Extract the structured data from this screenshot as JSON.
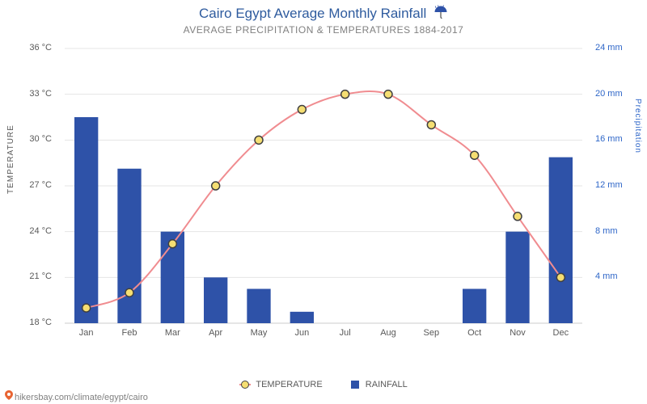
{
  "chart": {
    "title": "Cairo Egypt Average Monthly Rainfall",
    "title_color": "#2e5b9e",
    "subtitle": "AVERAGE PRECIPITATION & TEMPERATURES 1884-2017",
    "subtitle_color": "#808080",
    "months": [
      "Jan",
      "Feb",
      "Mar",
      "Apr",
      "May",
      "Jun",
      "Jul",
      "Aug",
      "Sep",
      "Oct",
      "Nov",
      "Dec"
    ],
    "temperature": {
      "label": "TEMPERATURE",
      "axis_label": "TEMPERATURE",
      "unit": "°C",
      "values": [
        19.0,
        20.0,
        23.2,
        27.0,
        30.0,
        32.0,
        33.0,
        33.0,
        31.0,
        29.0,
        25.0,
        21.0
      ],
      "ymin": 18,
      "ymax": 36,
      "ticks": [
        18,
        21,
        24,
        27,
        30,
        33,
        36
      ],
      "line_color": "#f08c90",
      "line_width": 2,
      "marker_fill": "#f5de72",
      "marker_stroke": "#404040",
      "marker_radius": 5
    },
    "rainfall": {
      "label": "RAINFALL",
      "axis_label": "Precipitation",
      "axis_color": "#2e66c8",
      "unit": "mm",
      "values": [
        18.0,
        13.5,
        8.0,
        4.0,
        3.0,
        1.0,
        0,
        0,
        0,
        3.0,
        8.0,
        14.5
      ],
      "ymin": 0,
      "ymax": 24,
      "ticks": [
        4,
        8,
        12,
        16,
        20,
        24
      ],
      "bar_color": "#2e52a8",
      "bar_width_ratio": 0.55
    },
    "grid_color": "#e5e5e5",
    "axis_color": "#cccccc",
    "plot_bg": "#ffffff",
    "source": "hikersbay.com/climate/egypt/cairo"
  }
}
